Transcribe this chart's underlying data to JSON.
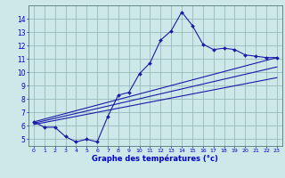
{
  "x": [
    0,
    1,
    2,
    3,
    4,
    5,
    6,
    7,
    8,
    9,
    10,
    11,
    12,
    13,
    14,
    15,
    16,
    17,
    18,
    19,
    20,
    21,
    22,
    23
  ],
  "y_main": [
    6.3,
    5.9,
    5.9,
    5.2,
    4.8,
    5.0,
    4.8,
    6.7,
    8.3,
    8.5,
    9.9,
    10.7,
    12.4,
    13.1,
    14.5,
    13.5,
    12.1,
    11.7,
    11.8,
    11.7,
    11.3,
    11.2,
    11.1,
    11.1
  ],
  "trend1_x": [
    0,
    23
  ],
  "trend1_y": [
    6.3,
    11.1
  ],
  "trend2_x": [
    0,
    23
  ],
  "trend2_y": [
    6.2,
    10.4
  ],
  "trend3_x": [
    0,
    23
  ],
  "trend3_y": [
    6.1,
    9.6
  ],
  "xlabel": "Graphe des températures (°c)",
  "ylim": [
    4.5,
    15.0
  ],
  "xlim": [
    -0.5,
    23.5
  ],
  "yticks": [
    5,
    6,
    7,
    8,
    9,
    10,
    11,
    12,
    13,
    14
  ],
  "xticks": [
    0,
    1,
    2,
    3,
    4,
    5,
    6,
    7,
    8,
    9,
    10,
    11,
    12,
    13,
    14,
    15,
    16,
    17,
    18,
    19,
    20,
    21,
    22,
    23
  ],
  "line_color": "#1a1aaa",
  "bg_color": "#cce8e8",
  "grid_color": "#99bbbb",
  "xlabel_color": "#0000cc",
  "tick_color": "#0000cc"
}
